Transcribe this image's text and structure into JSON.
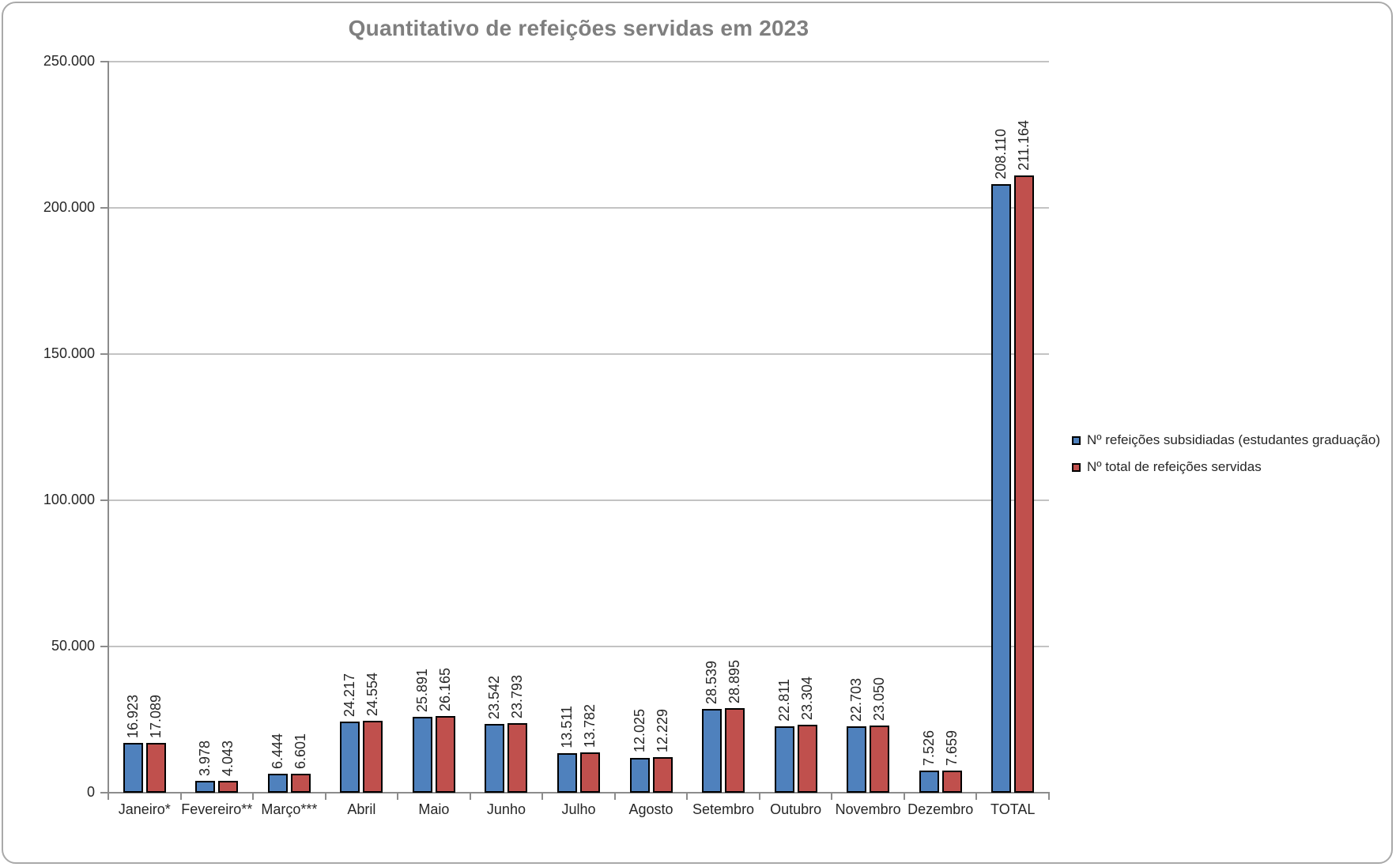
{
  "window": {
    "frame_border_color": "#a9a9a9",
    "background_color": "#ffffff"
  },
  "chart_data": {
    "type": "bar",
    "title": "Quantitativo de refeições servidas em 2023",
    "title_color": "#7f7f7f",
    "categories": [
      "Janeiro*",
      "Fevereiro**",
      "Março***",
      "Abril",
      "Maio",
      "Junho",
      "Julho",
      "Agosto",
      "Setembro",
      "Outubro",
      "Novembro",
      "Dezembro",
      "TOTAL"
    ],
    "series": [
      {
        "name": "Nº refeições subsidiadas (estudantes graduação)",
        "color": "#4f81bd",
        "values": [
          16923,
          3978,
          6444,
          24217,
          25891,
          23542,
          13511,
          12025,
          28539,
          22811,
          22703,
          7526,
          208110
        ],
        "value_labels": [
          "16.923",
          "3.978",
          "6.444",
          "24.217",
          "25.891",
          "23.542",
          "13.511",
          "12.025",
          "28.539",
          "22.811",
          "22.703",
          "7.526",
          "208.110"
        ]
      },
      {
        "name": "Nº total de refeições servidas",
        "color": "#c0504d",
        "values": [
          17089,
          4043,
          6601,
          24554,
          26165,
          23793,
          13782,
          12229,
          28895,
          23304,
          23050,
          7659,
          211164
        ],
        "value_labels": [
          "17.089",
          "4.043",
          "6.601",
          "24.554",
          "26.165",
          "23.793",
          "13.782",
          "12.229",
          "28.895",
          "23.304",
          "23.050",
          "7.659",
          "211.164"
        ]
      }
    ],
    "xlabel": "",
    "ylabel": "",
    "ylim": [
      0,
      250000
    ],
    "ytick_interval": 50000,
    "ytick_labels": [
      "0",
      "50.000",
      "100.000",
      "150.000",
      "200.000",
      "250.000"
    ],
    "grid": true,
    "gridline_color": "#c3c3c3",
    "axis_color": "#8c8c8c",
    "bar_border_color": "#000000",
    "legend_position": "right"
  }
}
